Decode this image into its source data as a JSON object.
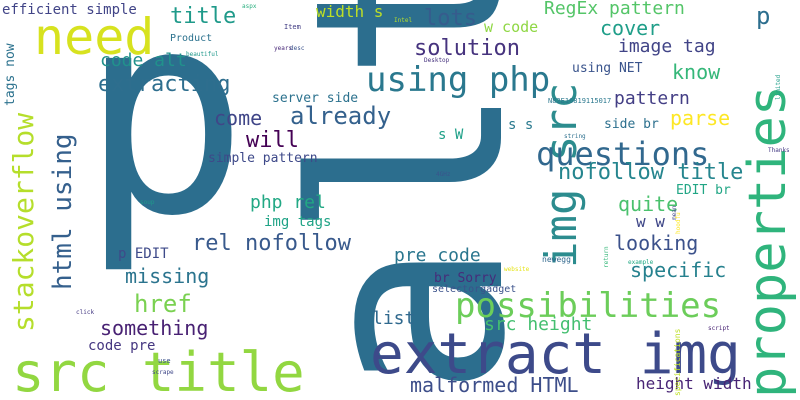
{
  "words": [
    {
      "text": "alt",
      "color": "#2c6e8e"
    },
    {
      "text": "p",
      "color": "#2c6e8e"
    },
    {
      "text": "extract img",
      "color": "#3d4a8a"
    },
    {
      "text": "src title",
      "color": "#92d741"
    },
    {
      "text": "properties",
      "color": "#2fb47c"
    },
    {
      "text": "img src",
      "color": "#2c8c8e"
    },
    {
      "text": "need",
      "color": "#d7e21f"
    },
    {
      "text": "using php",
      "color": "#2a788e"
    },
    {
      "text": "stackoverflow",
      "color": "#b5de2b"
    },
    {
      "text": "possibilities",
      "color": "#6ccd5a"
    },
    {
      "text": "questions",
      "color": "#31688e"
    },
    {
      "text": "html using",
      "color": "#35608d"
    },
    {
      "text": "extracting",
      "color": "#2e6e8e"
    },
    {
      "text": "rel nofollow",
      "color": "#38598c"
    },
    {
      "text": "malformed HTML",
      "color": "#3d4e8a"
    },
    {
      "text": "solution",
      "color": "#46337e"
    },
    {
      "text": "already",
      "color": "#34618d"
    },
    {
      "text": "nofollow title",
      "color": "#25858e"
    },
    {
      "text": "lots",
      "color": "#365c8d"
    },
    {
      "text": "cover",
      "color": "#1f9e89"
    },
    {
      "text": "image tag",
      "color": "#414487"
    },
    {
      "text": "RegEx pattern",
      "color": "#54c568"
    },
    {
      "text": "title",
      "color": "#1f9a8a"
    },
    {
      "text": "pattern",
      "color": "#433e85"
    },
    {
      "text": "parse",
      "color": "#fde725"
    },
    {
      "text": "know",
      "color": "#35b779"
    },
    {
      "text": "come",
      "color": "#404688"
    },
    {
      "text": "will",
      "color": "#440154"
    },
    {
      "text": "href",
      "color": "#7ad151"
    },
    {
      "text": "missing",
      "color": "#2b748e"
    },
    {
      "text": "something",
      "color": "#482173"
    },
    {
      "text": "looking",
      "color": "#3b518b"
    },
    {
      "text": "specific",
      "color": "#26818e"
    },
    {
      "text": "quite",
      "color": "#4ac16d"
    },
    {
      "text": "pre code",
      "color": "#2a768e"
    },
    {
      "text": "src height",
      "color": "#44bf70"
    },
    {
      "text": "php rel",
      "color": "#22a884"
    },
    {
      "text": "list",
      "color": "#30698e"
    },
    {
      "text": "code alt",
      "color": "#21918c"
    },
    {
      "text": "efficient simple",
      "color": "#414487"
    },
    {
      "text": "tags now",
      "color": "#2c728e"
    },
    {
      "text": "width s",
      "color": "#bddf26"
    },
    {
      "text": "w code",
      "color": "#8fd744"
    },
    {
      "text": "server side",
      "color": "#2c728e"
    },
    {
      "text": "simple pattern",
      "color": "#3e4989"
    },
    {
      "text": "img tags",
      "color": "#20a386"
    },
    {
      "text": "p EDIT",
      "color": "#3e4a89"
    },
    {
      "text": "code pre",
      "color": "#453781"
    },
    {
      "text": "height width",
      "color": "#482475"
    },
    {
      "text": "using NET",
      "color": "#3a548c"
    },
    {
      "text": "side br",
      "color": "#2d708e"
    },
    {
      "text": "EDIT br",
      "color": "#21a685"
    },
    {
      "text": "br Sorry",
      "color": "#472c7a"
    },
    {
      "text": "selectorgadget",
      "color": "#3b528b"
    },
    {
      "text": "w w",
      "color": "#3f4788"
    },
    {
      "text": "s W",
      "color": "#1fa088"
    },
    {
      "text": "s s",
      "color": "#29798e"
    },
    {
      "text": "Product",
      "color": "#2c728e"
    },
    {
      "text": "newegg",
      "color": "#31688e"
    },
    {
      "text": "specifications",
      "color": "#bddf26"
    },
    {
      "text": "N82E16819115017",
      "color": "#2a788e"
    },
    {
      "text": "aspx",
      "color": "#29af7f"
    },
    {
      "text": "Item",
      "color": "#433e85"
    },
    {
      "text": "Intel",
      "color": "#b5de2b"
    },
    {
      "text": "years",
      "color": "#482878"
    },
    {
      "text": "desc",
      "color": "#3b528b"
    },
    {
      "text": "Desktop",
      "color": "#46327e"
    },
    {
      "text": "beautiful",
      "color": "#1f988b"
    },
    {
      "text": "string",
      "color": "#2d708e"
    },
    {
      "text": "Thanks",
      "color": "#443a83"
    },
    {
      "text": "4GHz",
      "color": "#3a548c"
    },
    {
      "text": "soup",
      "color": "#1f9a8a"
    },
    {
      "text": "mean",
      "color": "#3e4989"
    },
    {
      "text": "website",
      "color": "#e5e419"
    },
    {
      "text": "example",
      "color": "#22a884"
    },
    {
      "text": "click",
      "color": "#443983"
    },
    {
      "text": "use",
      "color": "#3b528b"
    },
    {
      "text": "scrape",
      "color": "#3f4788"
    },
    {
      "text": "script",
      "color": "#482374"
    },
    {
      "text": "limited",
      "color": "#1f9e89"
    },
    {
      "text": "return",
      "color": "#35b779"
    },
    {
      "text": "hoodfu",
      "color": "#fde725"
    }
  ]
}
